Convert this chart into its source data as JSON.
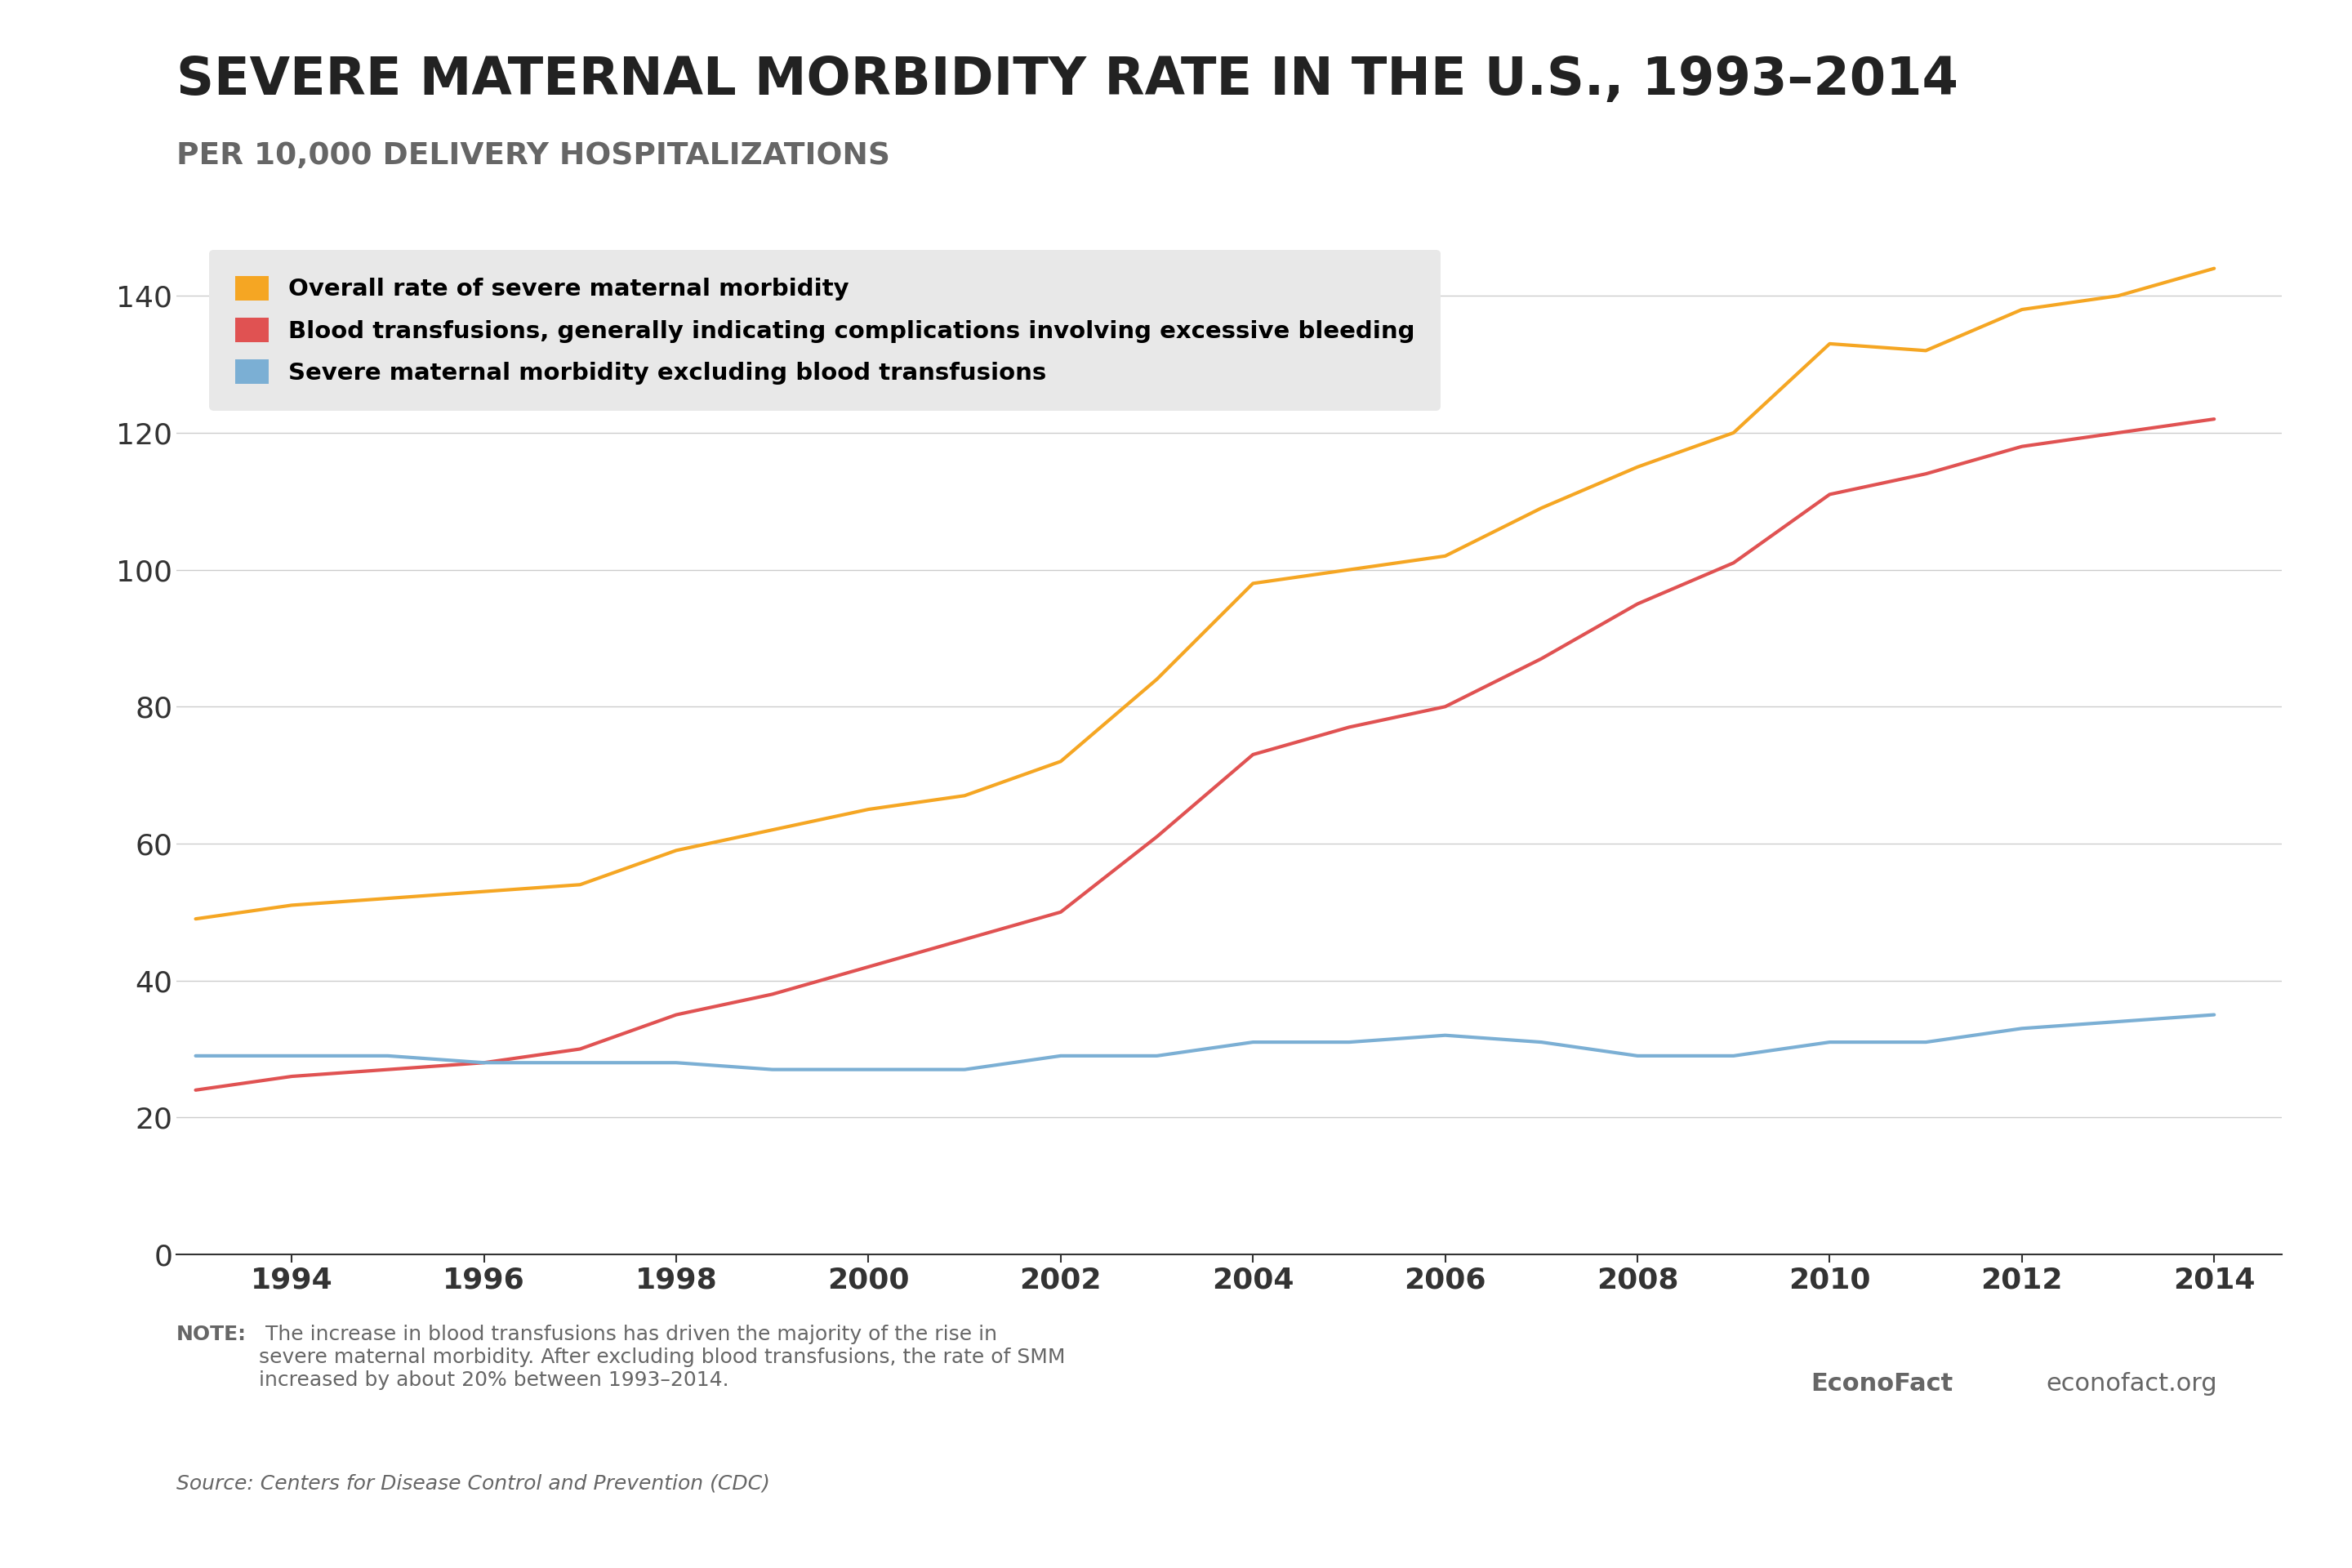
{
  "title": "SEVERE MATERNAL MORBIDITY RATE IN THE U.S., 1993–2014",
  "subtitle": "PER 10,000 DELIVERY HOSPITALIZATIONS",
  "years": [
    1993,
    1994,
    1995,
    1996,
    1997,
    1998,
    1999,
    2000,
    2001,
    2002,
    2003,
    2004,
    2005,
    2006,
    2007,
    2008,
    2009,
    2010,
    2011,
    2012,
    2013,
    2014
  ],
  "overall": [
    49,
    51,
    52,
    53,
    54,
    59,
    62,
    65,
    67,
    72,
    84,
    98,
    100,
    102,
    109,
    115,
    120,
    133,
    132,
    138,
    140,
    144
  ],
  "blood": [
    24,
    26,
    27,
    28,
    30,
    35,
    38,
    42,
    46,
    50,
    61,
    73,
    77,
    80,
    87,
    95,
    101,
    111,
    114,
    118,
    120,
    122
  ],
  "excl": [
    29,
    29,
    29,
    28,
    28,
    28,
    27,
    27,
    27,
    29,
    29,
    31,
    31,
    32,
    31,
    29,
    29,
    31,
    31,
    33,
    34,
    35
  ],
  "color_overall": "#F5A623",
  "color_blood": "#E05252",
  "color_excl": "#7BAFD4",
  "legend_overall": "Overall rate of severe maternal morbidity",
  "legend_blood": "Blood transfusions, generally indicating complications involving excessive bleeding",
  "legend_excl": "Severe maternal morbidity excluding blood transfusions",
  "note_bold": "NOTE:",
  "note_text": " The increase in blood transfusions has driven the majority of the rise in\nsevere maternal morbidity. After excluding blood transfusions, the rate of SMM\nincreased by about 20% between 1993–2014.",
  "source_text": "Source: Centers for Disease Control and Prevention (CDC)",
  "credit1": "EconoFact",
  "credit2": "econofact.org",
  "ylim": [
    0,
    150
  ],
  "yticks": [
    0,
    20,
    40,
    60,
    80,
    100,
    120,
    140
  ],
  "xticks": [
    1994,
    1996,
    1998,
    2000,
    2002,
    2004,
    2006,
    2008,
    2010,
    2012,
    2014
  ],
  "background_color": "#ffffff",
  "title_color": "#222222",
  "subtitle_color": "#666666",
  "axis_color": "#333333",
  "grid_color": "#cccccc",
  "note_color": "#666666",
  "legend_bg": "#e8e8e8",
  "line_width": 3.0
}
